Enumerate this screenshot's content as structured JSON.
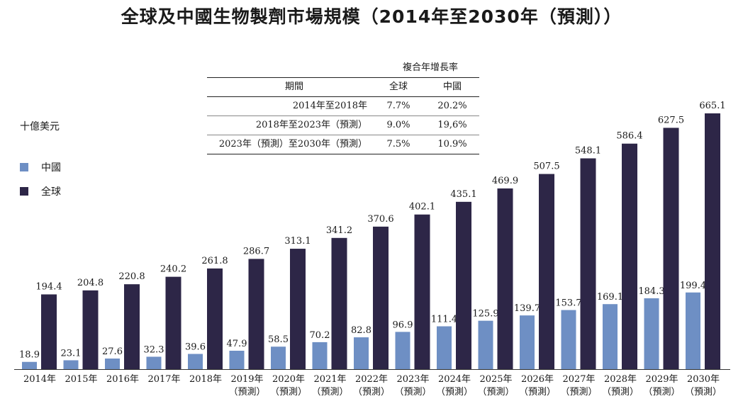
{
  "title": "全球及中國生物製劑市場規模（2014年至2030年（預測））",
  "unit_label": "十億美元",
  "legend": [
    {
      "label": "中國",
      "color": "#6e8fc4"
    },
    {
      "label": "全球",
      "color": "#2d2647"
    }
  ],
  "cagr_table": {
    "caption": "複合年增長率",
    "headers": [
      "期間",
      "全球",
      "中國"
    ],
    "rows": [
      [
        "2014年至2018年",
        "7.7%",
        "20.2%"
      ],
      [
        "2018年至2023年（預測）",
        "9.0%",
        "19,6%"
      ],
      [
        "2023年（預測）至2030年（預測）",
        "7.5%",
        "10.9%"
      ]
    ]
  },
  "chart_data": {
    "type": "bar",
    "title": "全球及中國生物製劑市場規模（2014年至2030年（預測））",
    "ylabel": "十億美元",
    "xlabel": "",
    "ylim": [
      0,
      700
    ],
    "categories": [
      "2014年",
      "2015年",
      "2016年",
      "2017年",
      "2018年",
      "2019年",
      "2020年",
      "2021年",
      "2022年",
      "2023年",
      "2024年",
      "2025年",
      "2026年",
      "2027年",
      "2028年",
      "2029年",
      "2030年"
    ],
    "category_sublabels": [
      "",
      "",
      "",
      "",
      "",
      "（預測）",
      "（預測）",
      "（預測）",
      "（預測）",
      "（預測）",
      "（預測）",
      "（預測）",
      "（預測）",
      "（預測）",
      "（預測）",
      "（預測）",
      "（預測）"
    ],
    "series": [
      {
        "name": "中國",
        "color": "#6e8fc4",
        "values": [
          18.9,
          23.1,
          27.6,
          32.3,
          39.6,
          47.9,
          58.5,
          70.2,
          82.8,
          96.9,
          111.4,
          125.9,
          139.7,
          153.7,
          169.1,
          184.3,
          199.4
        ]
      },
      {
        "name": "全球",
        "color": "#2d2647",
        "values": [
          194.4,
          204.8,
          220.8,
          240.2,
          261.8,
          286.7,
          313.1,
          341.2,
          370.6,
          402.1,
          435.1,
          469.9,
          507.5,
          548.1,
          586.4,
          627.5,
          665.1
        ]
      }
    ],
    "legend_position": "left"
  }
}
